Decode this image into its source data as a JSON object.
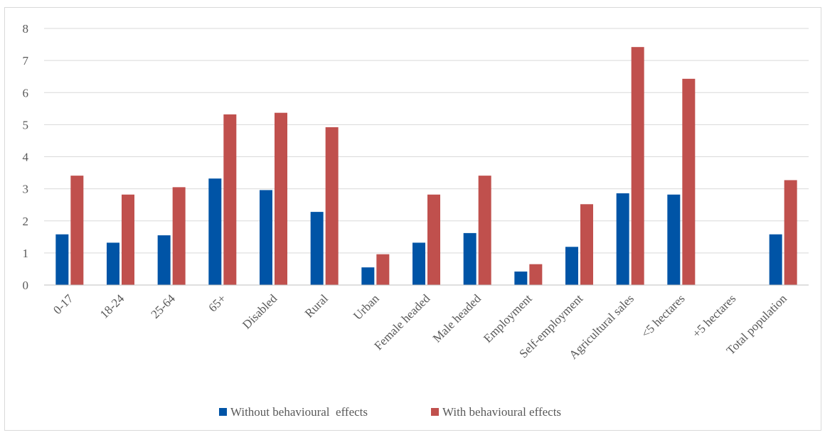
{
  "chart_data": {
    "type": "bar",
    "categories": [
      "0-17",
      "18-24",
      "25-64",
      "65+",
      "Disabled",
      "Rural",
      "Urban",
      "Female headed",
      "Male headed",
      "Employment",
      "Self-employment",
      "Agricultural sales",
      "<5 hectares",
      "+5 hectares",
      "Total population"
    ],
    "series": [
      {
        "name": "Without behavioural  effects",
        "color": "#0054a6",
        "values": [
          1.58,
          1.32,
          1.55,
          3.32,
          2.96,
          2.28,
          0.55,
          1.32,
          1.62,
          0.42,
          1.19,
          2.86,
          2.82,
          0,
          1.58
        ]
      },
      {
        "name": "With behavioural effects",
        "color": "#c0504d",
        "values": [
          3.41,
          2.82,
          3.05,
          5.32,
          5.37,
          4.92,
          0.96,
          2.82,
          3.41,
          0.65,
          2.52,
          7.42,
          6.43,
          0,
          3.27
        ]
      }
    ],
    "ylim": [
      0,
      8
    ],
    "yticks": [
      "0",
      "1",
      "2",
      "3",
      "4",
      "5",
      "6",
      "7",
      "8"
    ],
    "grid": true,
    "legend": "bottom",
    "title": "",
    "xlabel": "",
    "ylabel": ""
  }
}
